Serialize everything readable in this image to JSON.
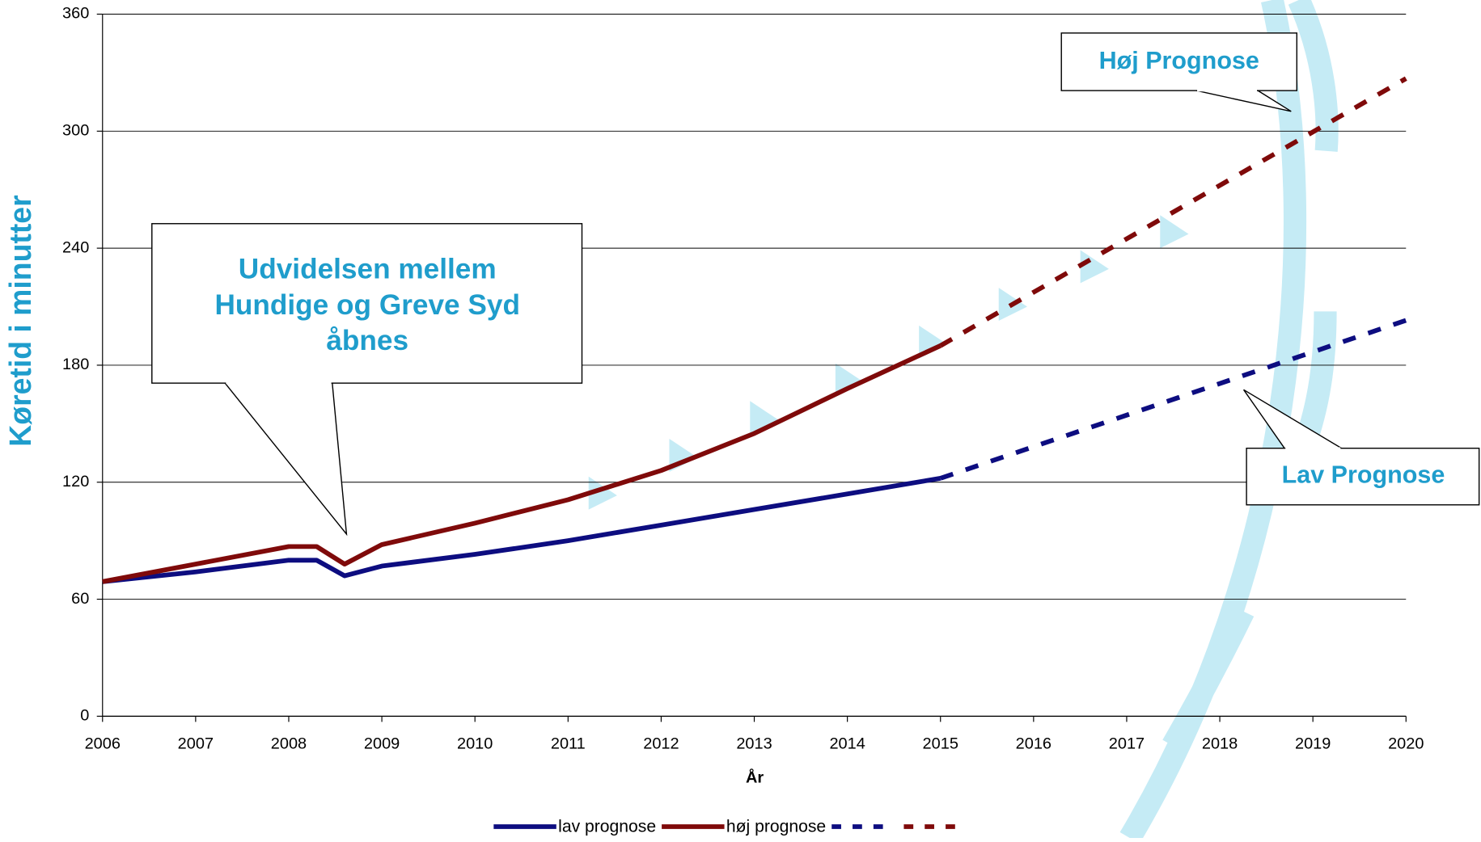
{
  "chart_data": {
    "type": "line",
    "ylabel": "Køretid i minutter",
    "xlabel": "År",
    "xlim": [
      2006,
      2020
    ],
    "xticks": [
      2006,
      2007,
      2008,
      2009,
      2010,
      2011,
      2012,
      2013,
      2014,
      2015,
      2016,
      2017,
      2018,
      2019,
      2020
    ],
    "ylim": [
      0,
      360
    ],
    "yticks": [
      0,
      60,
      120,
      180,
      240,
      300,
      360
    ],
    "grid": true,
    "series": [
      {
        "name": "lav prognose",
        "color": "#0d0d80",
        "dashed": false,
        "x": [
          2006,
          2007,
          2008,
          2008.3,
          2008.6,
          2009,
          2010,
          2011,
          2012,
          2013,
          2014,
          2015
        ],
        "values": [
          69,
          74,
          80,
          80,
          72,
          77,
          83,
          90,
          98,
          106,
          114,
          122
        ]
      },
      {
        "name": "høj prognose",
        "color": "#7f0a0a",
        "dashed": false,
        "x": [
          2006,
          2007,
          2008,
          2008.3,
          2008.6,
          2009,
          2010,
          2011,
          2012,
          2013,
          2014,
          2015
        ],
        "values": [
          69,
          78,
          87,
          87,
          78,
          88,
          99,
          111,
          126,
          145,
          168,
          190
        ]
      },
      {
        "color": "#0d0d80",
        "dashed": true,
        "x": [
          2015,
          2020
        ],
        "values": [
          122,
          203
        ]
      },
      {
        "color": "#7f0a0a",
        "dashed": true,
        "x": [
          2015,
          2020
        ],
        "values": [
          190,
          327
        ]
      }
    ],
    "annotations": [
      {
        "text": [
          "Udvidelsen mellem",
          "Hundige og Greve Syd",
          "åbnes"
        ]
      },
      {
        "text": "Høj Prognose"
      },
      {
        "text": "Lav Prognose"
      }
    ]
  }
}
